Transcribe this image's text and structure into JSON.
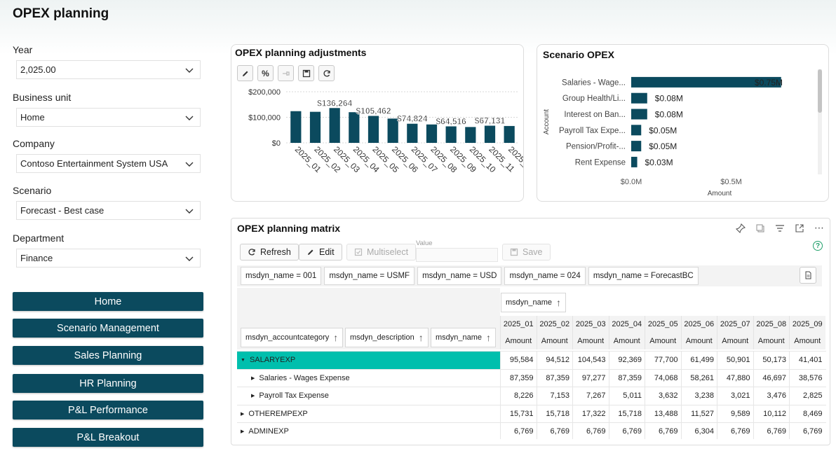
{
  "page": {
    "title": "OPEX planning"
  },
  "filters": [
    {
      "label": "Year",
      "value": "2,025.00"
    },
    {
      "label": "Business unit",
      "value": "Home"
    },
    {
      "label": "Company",
      "value": "Contoso Entertainment System USA"
    },
    {
      "label": "Scenario",
      "value": "Forecast - Best case"
    },
    {
      "label": "Department",
      "value": "Finance"
    }
  ],
  "nav": [
    {
      "label": "Home"
    },
    {
      "label": "Scenario Management"
    },
    {
      "label": "Sales Planning"
    },
    {
      "label": "HR Planning"
    },
    {
      "label": "P&L Performance"
    },
    {
      "label": "P&L Breakout"
    }
  ],
  "adjustments": {
    "title": "OPEX planning adjustments",
    "toolbar_icons": [
      "edit-icon",
      "percent-icon",
      "pin-icon",
      "save-icon",
      "refresh-icon"
    ],
    "percent_label": "%",
    "chart_data": {
      "type": "bar",
      "categories": [
        "2025_01",
        "2025_02",
        "2025_03",
        "2025_04",
        "2025_05",
        "2025_06",
        "2025_07",
        "2025_08",
        "2025_09",
        "2025_10",
        "2025_11",
        "2025_"
      ],
      "values": [
        124000,
        121500,
        136264,
        120000,
        105462,
        95000,
        74824,
        72000,
        64516,
        62000,
        67131,
        66000
      ],
      "data_labels": [
        "",
        "",
        "$136,264",
        "",
        "$105,462",
        "",
        "$74,824",
        "",
        "$64,516",
        "",
        "$67,131",
        ""
      ],
      "yticks": [
        "$200,000",
        "$100,000",
        "$0"
      ],
      "ylim": [
        0,
        200000
      ],
      "bar_color": "#0b4a5e"
    }
  },
  "scenario_chart": {
    "title": "Scenario OPEX",
    "chart_data": {
      "type": "bar",
      "orientation": "horizontal",
      "categories": [
        "Salaries - Wage...",
        "Group Health/Li...",
        "Interest on Ban...",
        "Payroll Tax Expe...",
        "Pension/Profit-...",
        "Rent Expense"
      ],
      "values": [
        0.75,
        0.08,
        0.08,
        0.05,
        0.05,
        0.03
      ],
      "data_labels": [
        "$0.75M",
        "$0.08M",
        "$0.08M",
        "$0.05M",
        "$0.05M",
        "$0.03M"
      ],
      "xticks": [
        "$0.0M",
        "$0.5M"
      ],
      "xlim": [
        0,
        0.8
      ],
      "xlabel": "Amount",
      "ylabel": "Account",
      "bar_color": "#0b4a5e"
    }
  },
  "matrix": {
    "title": "OPEX planning matrix",
    "header_icons": [
      "pin-icon",
      "copy-icon",
      "filter-icon",
      "expand-icon",
      "more-icon"
    ],
    "buttons": {
      "refresh": "Refresh",
      "edit": "Edit",
      "multiselect": "Multiselect",
      "save": "Save"
    },
    "value_label": "Value",
    "help_text": "?",
    "chips": [
      "msdyn_name = 001",
      "msdyn_name = USMF",
      "msdyn_name = USD",
      "msdyn_name = 024",
      "msdyn_name = ForecastBC"
    ],
    "column_group": "msdyn_name",
    "row_headers": [
      "msdyn_accountcategory",
      "msdyn_description",
      "msdyn_name"
    ],
    "columns": [
      "2025_01",
      "2025_02",
      "2025_03",
      "2025_04",
      "2025_05",
      "2025_06",
      "2025_07",
      "2025_08",
      "2025_09"
    ],
    "measure": "Amount",
    "rows": [
      {
        "label": "SALARYEXP",
        "level": 0,
        "highlight": true,
        "values": [
          "95,584",
          "94,512",
          "104,543",
          "92,369",
          "77,700",
          "61,499",
          "50,901",
          "50,173",
          "41,401"
        ]
      },
      {
        "label": "Salaries - Wages Expense",
        "level": 1,
        "highlight": false,
        "values": [
          "87,359",
          "87,359",
          "97,277",
          "87,359",
          "74,068",
          "58,261",
          "47,880",
          "46,697",
          "38,576"
        ]
      },
      {
        "label": "Payroll Tax Expense",
        "level": 1,
        "highlight": false,
        "values": [
          "8,226",
          "7,153",
          "7,267",
          "5,011",
          "3,632",
          "3,238",
          "3,021",
          "3,476",
          "2,825"
        ]
      },
      {
        "label": "OTHEREMPEXP",
        "level": 0,
        "highlight": false,
        "values": [
          "15,731",
          "15,718",
          "17,322",
          "15,718",
          "13,488",
          "11,527",
          "9,589",
          "10,112",
          "8,469"
        ]
      },
      {
        "label": "ADMINEXP",
        "level": 0,
        "highlight": false,
        "values": [
          "6,769",
          "6,769",
          "6,769",
          "6,769",
          "6,769",
          "6,304",
          "6,769",
          "6,769",
          "6,769"
        ]
      }
    ]
  }
}
